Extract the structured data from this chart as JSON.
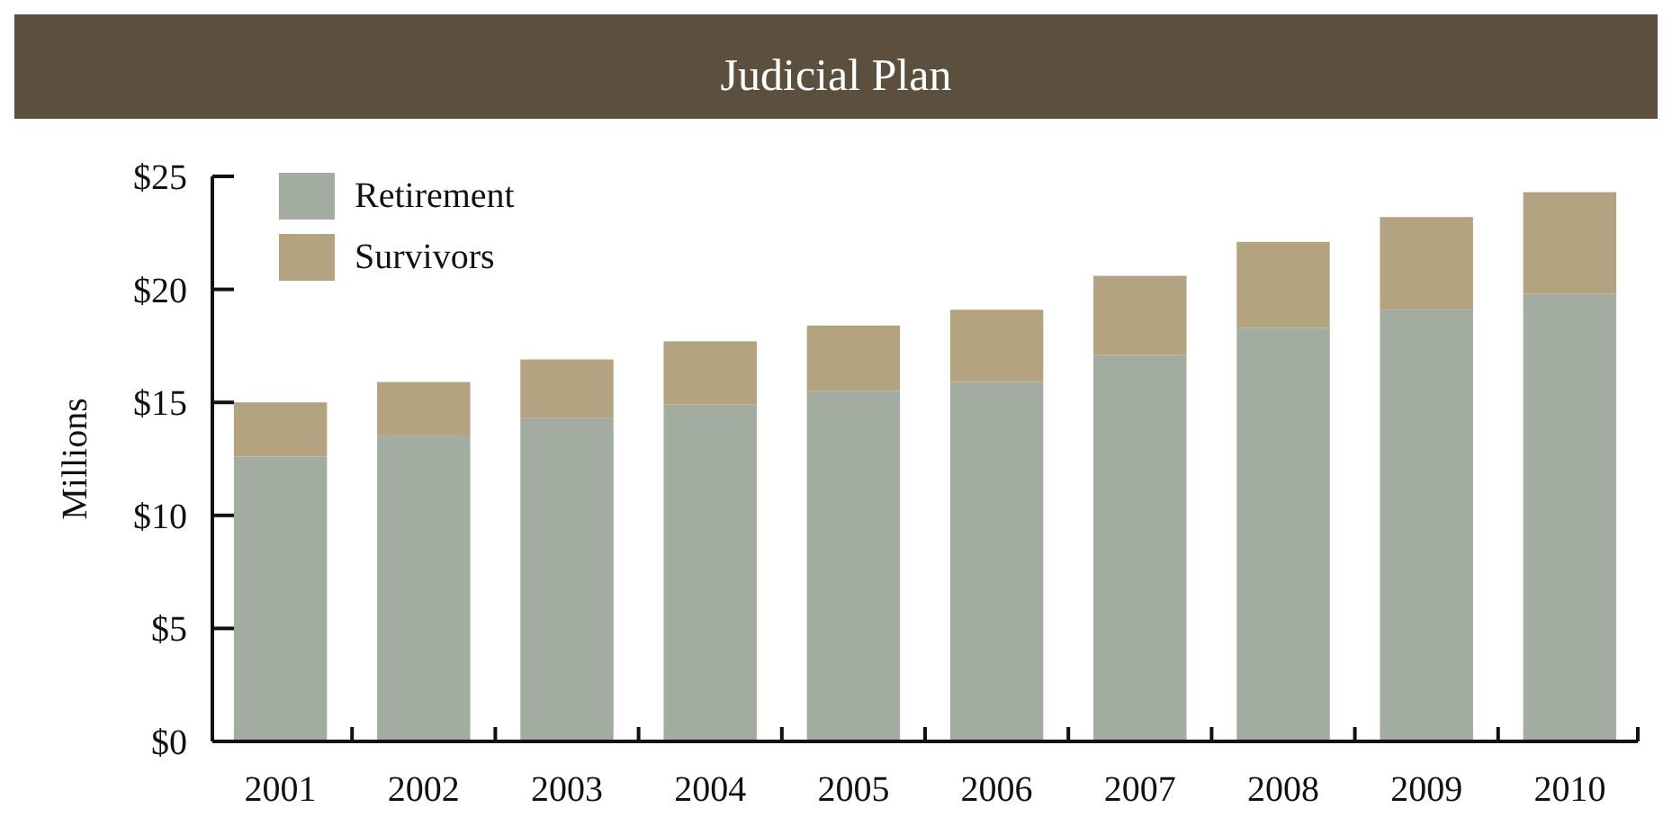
{
  "chart_data": {
    "type": "bar",
    "title": "Judicial Plan",
    "ylabel": "Millions",
    "stacked": true,
    "legend": "top left",
    "grid": false,
    "categories": [
      "2001",
      "2002",
      "2003",
      "2004",
      "2005",
      "2006",
      "2007",
      "2008",
      "2009",
      "2010"
    ],
    "series": [
      {
        "name": "Retirement",
        "color": "#a2aca0",
        "values": [
          12.6,
          13.5,
          14.3,
          14.9,
          15.5,
          15.9,
          17.1,
          18.3,
          19.1,
          19.8
        ]
      },
      {
        "name": "Survivors",
        "color": "#b4a380",
        "values": [
          2.4,
          2.4,
          2.6,
          2.8,
          2.9,
          3.2,
          3.5,
          3.8,
          4.1,
          4.5
        ]
      }
    ],
    "ylim": [
      0,
      25
    ],
    "yticks": [
      {
        "value": 0,
        "label": "$0"
      },
      {
        "value": 5,
        "label": "$5"
      },
      {
        "value": 10,
        "label": "$10"
      },
      {
        "value": 15,
        "label": "$15"
      },
      {
        "value": 20,
        "label": "$20"
      },
      {
        "value": 25,
        "label": "$25"
      }
    ]
  }
}
